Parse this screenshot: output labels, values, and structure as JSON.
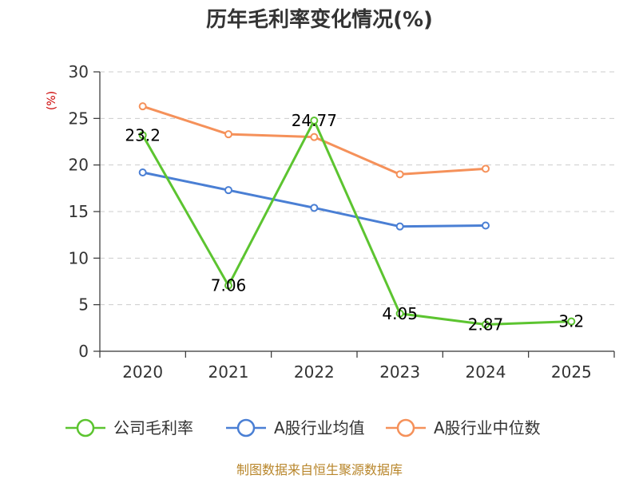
{
  "chart_data": {
    "type": "line",
    "title": "历年毛利率变化情况(%)",
    "ylabel": "(%)",
    "xlabel": "",
    "categories": [
      "2020",
      "2021",
      "2022",
      "2023",
      "2024",
      "2025"
    ],
    "ylim": [
      0,
      30
    ],
    "yticks": [
      0,
      5,
      10,
      15,
      20,
      25,
      30
    ],
    "grid": true,
    "legend_position": "bottom",
    "series": [
      {
        "name": "公司毛利率",
        "color": "#5cc430",
        "values": [
          23.2,
          7.06,
          24.77,
          4.05,
          2.87,
          3.2
        ],
        "labels": [
          "23.2",
          "7.06",
          "24.77",
          "4.05",
          "2.87",
          "3.2"
        ]
      },
      {
        "name": "A股行业均值",
        "color": "#4a7fd4",
        "values": [
          19.2,
          17.3,
          15.4,
          13.4,
          13.5,
          null
        ]
      },
      {
        "name": "A股行业中位数",
        "color": "#f5915a",
        "values": [
          26.3,
          23.3,
          23.0,
          19.0,
          19.6,
          null
        ]
      }
    ]
  },
  "source": "制图数据来自恒生聚源数据库"
}
